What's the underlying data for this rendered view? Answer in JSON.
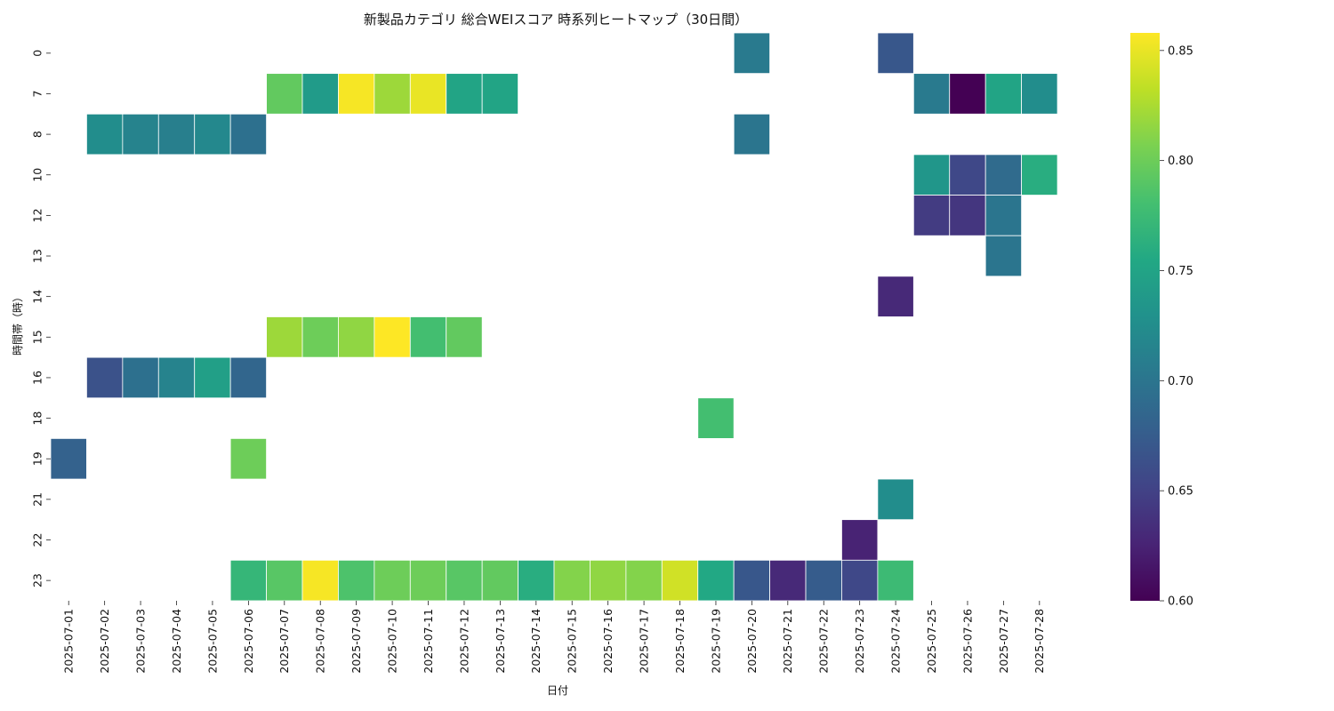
{
  "chart_data": {
    "type": "heatmap",
    "title": "新製品カテゴリ 総合WEIスコア 時系列ヒートマップ（30日間）",
    "xlabel": "日付",
    "ylabel": "時間帯（時）",
    "dates": [
      "2025-07-01",
      "2025-07-02",
      "2025-07-03",
      "2025-07-04",
      "2025-07-05",
      "2025-07-06",
      "2025-07-07",
      "2025-07-08",
      "2025-07-09",
      "2025-07-10",
      "2025-07-11",
      "2025-07-12",
      "2025-07-13",
      "2025-07-14",
      "2025-07-15",
      "2025-07-16",
      "2025-07-17",
      "2025-07-18",
      "2025-07-19",
      "2025-07-20",
      "2025-07-21",
      "2025-07-22",
      "2025-07-23",
      "2025-07-24",
      "2025-07-25",
      "2025-07-26",
      "2025-07-27",
      "2025-07-28"
    ],
    "x_tick_labels": [
      "2025-07-01",
      "2025-07-02",
      "2025-07-03",
      "2025-07-04",
      "2025-07-05",
      "2025-07-06",
      "2025-07-07",
      "2025-07-08",
      "2025-07-09",
      "2025-07-10",
      "2025-07-11",
      "2025-07-12",
      "2025-07-13",
      "2025-07-14",
      "2025-07-15",
      "2025-07-16",
      "2025-07-17",
      "2025-07-18",
      "2025-07-19",
      "2025-07-20",
      "2025-07-21",
      "2025-07-22",
      "2025-07-23",
      "2025-07-24",
      "2025-07-25",
      "2025-07-26",
      "2025-07-27",
      "2025-07-28"
    ],
    "hours": [
      "0",
      "7",
      "8",
      "10",
      "12",
      "13",
      "14",
      "15",
      "16",
      "18",
      "19",
      "21",
      "22",
      "23"
    ],
    "values": [
      [
        null,
        null,
        null,
        null,
        null,
        null,
        null,
        null,
        null,
        null,
        null,
        null,
        null,
        null,
        null,
        null,
        null,
        null,
        null,
        0.705,
        null,
        null,
        null,
        0.67,
        null,
        null,
        null,
        null
      ],
      [
        null,
        null,
        null,
        null,
        null,
        null,
        0.795,
        0.74,
        0.855,
        0.82,
        0.85,
        0.75,
        0.75,
        null,
        null,
        null,
        null,
        null,
        null,
        null,
        null,
        null,
        null,
        null,
        0.705,
        0.6,
        0.75,
        0.725
      ],
      [
        null,
        0.725,
        0.715,
        0.71,
        0.72,
        0.695,
        null,
        null,
        null,
        null,
        null,
        null,
        null,
        null,
        null,
        null,
        null,
        null,
        null,
        0.7,
        null,
        null,
        null,
        null,
        null,
        null,
        null,
        null
      ],
      [
        null,
        null,
        null,
        null,
        null,
        null,
        null,
        null,
        null,
        null,
        null,
        null,
        null,
        null,
        null,
        null,
        null,
        null,
        null,
        null,
        null,
        null,
        null,
        null,
        0.735,
        0.655,
        0.69,
        0.76
      ],
      [
        null,
        null,
        null,
        null,
        null,
        null,
        null,
        null,
        null,
        null,
        null,
        null,
        null,
        null,
        null,
        null,
        null,
        null,
        null,
        null,
        null,
        null,
        null,
        null,
        0.645,
        0.64,
        0.7,
        null
      ],
      [
        null,
        null,
        null,
        null,
        null,
        null,
        null,
        null,
        null,
        null,
        null,
        null,
        null,
        null,
        null,
        null,
        null,
        null,
        null,
        null,
        null,
        null,
        null,
        null,
        null,
        null,
        0.7,
        null
      ],
      [
        null,
        null,
        null,
        null,
        null,
        null,
        null,
        null,
        null,
        null,
        null,
        null,
        null,
        null,
        null,
        null,
        null,
        null,
        null,
        null,
        null,
        null,
        null,
        0.63,
        null,
        null,
        null,
        null
      ],
      [
        null,
        null,
        null,
        null,
        null,
        null,
        0.82,
        0.8,
        0.815,
        0.858,
        0.78,
        0.795,
        null,
        null,
        null,
        null,
        null,
        null,
        null,
        null,
        null,
        null,
        null,
        null,
        null,
        null,
        null,
        null
      ],
      [
        null,
        0.665,
        0.695,
        0.715,
        0.745,
        0.685,
        null,
        null,
        null,
        null,
        null,
        null,
        null,
        null,
        null,
        null,
        null,
        null,
        null,
        null,
        null,
        null,
        null,
        null,
        null,
        null,
        null,
        null
      ],
      [
        null,
        null,
        null,
        null,
        null,
        null,
        null,
        null,
        null,
        null,
        null,
        null,
        null,
        null,
        null,
        null,
        null,
        null,
        0.78,
        null,
        null,
        null,
        null,
        null,
        null,
        null,
        null,
        null
      ],
      [
        0.68,
        null,
        null,
        null,
        null,
        0.8,
        null,
        null,
        null,
        null,
        null,
        null,
        null,
        null,
        null,
        null,
        null,
        null,
        null,
        null,
        null,
        null,
        null,
        null,
        null,
        null,
        null,
        null
      ],
      [
        null,
        null,
        null,
        null,
        null,
        null,
        null,
        null,
        null,
        null,
        null,
        null,
        null,
        null,
        null,
        null,
        null,
        null,
        null,
        null,
        null,
        null,
        null,
        0.725,
        null,
        null,
        null,
        null
      ],
      [
        null,
        null,
        null,
        null,
        null,
        null,
        null,
        null,
        null,
        null,
        null,
        null,
        null,
        null,
        null,
        null,
        null,
        null,
        null,
        null,
        null,
        null,
        0.625,
        null,
        null,
        null,
        null,
        null
      ],
      [
        null,
        null,
        null,
        null,
        null,
        0.77,
        0.79,
        0.855,
        0.785,
        0.8,
        0.8,
        0.79,
        0.795,
        0.76,
        0.81,
        0.815,
        0.81,
        0.84,
        0.755,
        0.67,
        0.63,
        0.675,
        0.655,
        0.775,
        null,
        null,
        null,
        null
      ]
    ],
    "vmin": 0.6,
    "vmax": 0.858,
    "colorbar_ticks": [
      "0.60",
      "0.65",
      "0.70",
      "0.75",
      "0.80",
      "0.85"
    ],
    "colormap": "viridis",
    "grid": false,
    "legend": "colorbar-right"
  }
}
